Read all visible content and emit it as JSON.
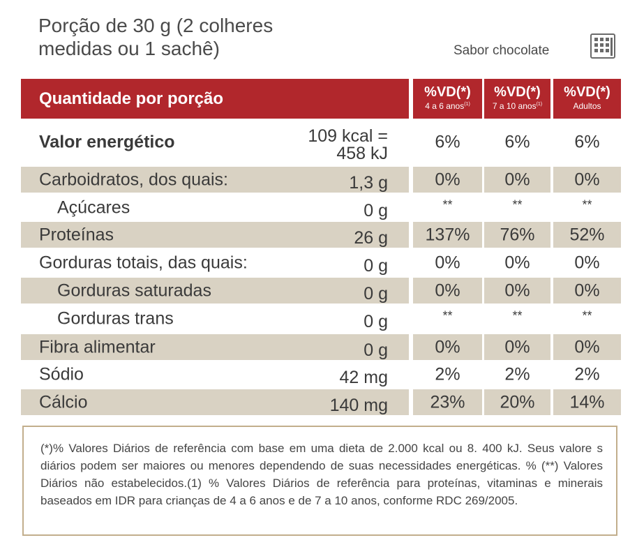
{
  "portion": {
    "line1": "Porção de 30 g (2 colheres",
    "line2": "medidas ou 1 sachê)"
  },
  "flavor": "Sabor chocolate",
  "header": {
    "quantity_label": "Quantidade por porção",
    "columns": [
      {
        "title": "%VD(*)",
        "sub": "4 a 6 anos",
        "sup": "(1)"
      },
      {
        "title": "%VD(*)",
        "sub": "7 a 10 anos",
        "sup": "(1)"
      },
      {
        "title": "%VD(*)",
        "sub": "Adultos",
        "sup": ""
      }
    ]
  },
  "rows": [
    {
      "name": "Valor energético",
      "amount1": "109 kcal =",
      "amount2": "458 kJ",
      "vd": [
        "6%",
        "6%",
        "6%"
      ],
      "shaded": false,
      "bold": true,
      "indent": false
    },
    {
      "name": "Carboidratos, dos quais:",
      "amount1": "1,3 g",
      "amount2": "",
      "vd": [
        "0%",
        "0%",
        "0%"
      ],
      "shaded": true,
      "bold": false,
      "indent": false
    },
    {
      "name": "Açúcares",
      "amount1": "0 g",
      "amount2": "",
      "vd": [
        "**",
        "**",
        "**"
      ],
      "shaded": false,
      "bold": false,
      "indent": true
    },
    {
      "name": "Proteínas",
      "amount1": "26 g",
      "amount2": "",
      "vd": [
        "137%",
        "76%",
        "52%"
      ],
      "shaded": true,
      "bold": false,
      "indent": false
    },
    {
      "name": "Gorduras totais, das quais:",
      "amount1": "0 g",
      "amount2": "",
      "vd": [
        "0%",
        "0%",
        "0%"
      ],
      "shaded": false,
      "bold": false,
      "indent": false
    },
    {
      "name": "Gorduras saturadas",
      "amount1": "0 g",
      "amount2": "",
      "vd": [
        "0%",
        "0%",
        "0%"
      ],
      "shaded": true,
      "bold": false,
      "indent": true
    },
    {
      "name": "Gorduras trans",
      "amount1": "0 g",
      "amount2": "",
      "vd": [
        "**",
        "**",
        "**"
      ],
      "shaded": false,
      "bold": false,
      "indent": true
    },
    {
      "name": "Fibra alimentar",
      "amount1": "0 g",
      "amount2": "",
      "vd": [
        "0%",
        "0%",
        "0%"
      ],
      "shaded": true,
      "bold": false,
      "indent": false
    },
    {
      "name": "Sódio",
      "amount1": "42 mg",
      "amount2": "",
      "vd": [
        "2%",
        "2%",
        "2%"
      ],
      "shaded": false,
      "bold": false,
      "indent": false
    },
    {
      "name": "Cálcio",
      "amount1": "140 mg",
      "amount2": "",
      "vd": [
        "23%",
        "20%",
        "14%"
      ],
      "shaded": true,
      "bold": false,
      "indent": false
    }
  ],
  "footnote": "(*)% Valores Diários de referência com base em uma dieta de 2.000 kcal ou 8. 400 kJ. Seus valore s diários podem ser maiores ou menores dependendo de suas necessidades energéticas. % (**) Valores Diários não estabelecidos.(1) % Valores Diários de referência para proteínas, vitaminas e minerais baseados em IDR para crianças de 4 a 6 anos e de 7 a 10 anos, conforme RDC 269/2005.",
  "colors": {
    "header_red": "#b1272c",
    "row_shade": "#d9d2c3",
    "footer_border": "#c2ae8c"
  },
  "icons": {
    "flavor": "grid-icon"
  }
}
